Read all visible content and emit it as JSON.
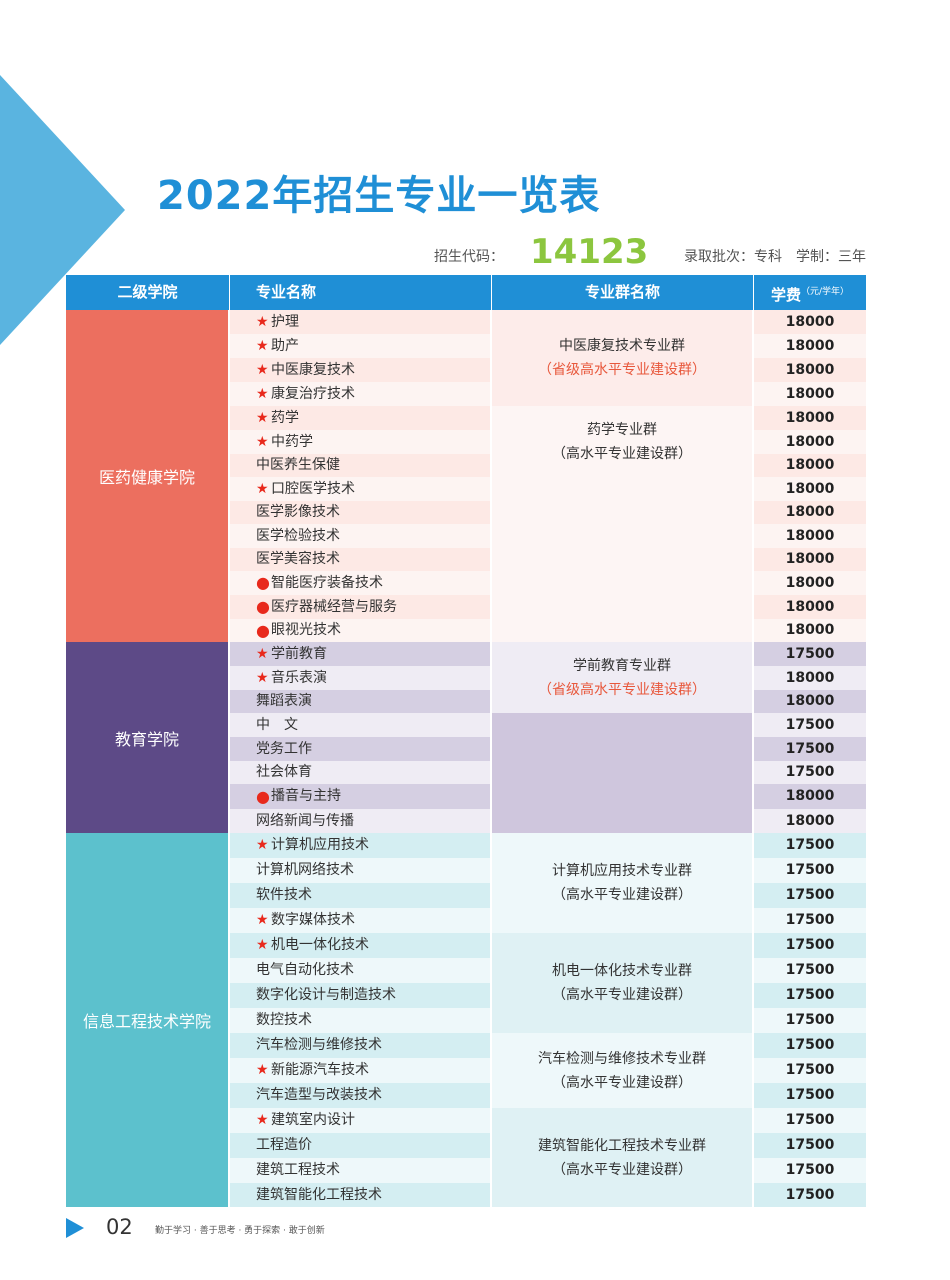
{
  "title": "2022年招生专业一览表",
  "code_label": "招生代码：",
  "code_value": "14123",
  "batch_info": "录取批次：专科　学制：三年",
  "headers": {
    "college": "二级学院",
    "major": "专业名称",
    "group": "专业群名称",
    "fee": "学费",
    "fee_unit": "（元/学年）"
  },
  "colleges": [
    {
      "name": "医药健康学院",
      "color": "#ec6f5f"
    },
    {
      "name": "教育学院",
      "color": "#5d4a87"
    },
    {
      "name": "信息工程技术学院",
      "color": "#5cc1cd"
    }
  ],
  "groups": [
    {
      "name": "中医康复技术专业群",
      "note": "（省级高水平专业建设群）"
    },
    {
      "name": "药学专业群",
      "note": "（高水平专业建设群）"
    },
    {
      "name": "学前教育专业群",
      "note": "（省级高水平专业建设群）"
    },
    {
      "name": "计算机应用技术专业群",
      "note": "（高水平专业建设群）"
    },
    {
      "name": "机电一体化技术专业群",
      "note": "（高水平专业建设群）"
    },
    {
      "name": "汽车检测与维修技术专业群",
      "note": "（高水平专业建设群）"
    },
    {
      "name": "建筑智能化工程技术专业群",
      "note": "（高水平专业建设群）"
    }
  ],
  "rows": [
    {
      "mark": "★",
      "name": "护理",
      "fee": "18000"
    },
    {
      "mark": "★",
      "name": "助产",
      "fee": "18000"
    },
    {
      "mark": "★",
      "name": "中医康复技术",
      "fee": "18000"
    },
    {
      "mark": "★",
      "name": "康复治疗技术",
      "fee": "18000"
    },
    {
      "mark": "★",
      "name": "药学",
      "fee": "18000"
    },
    {
      "mark": "★",
      "name": "中药学",
      "fee": "18000"
    },
    {
      "mark": "",
      "name": "中医养生保健",
      "fee": "18000"
    },
    {
      "mark": "★",
      "name": "口腔医学技术",
      "fee": "18000"
    },
    {
      "mark": "",
      "name": "医学影像技术",
      "fee": "18000"
    },
    {
      "mark": "",
      "name": "医学检验技术",
      "fee": "18000"
    },
    {
      "mark": "",
      "name": "医学美容技术",
      "fee": "18000"
    },
    {
      "mark": "●",
      "name": "智能医疗装备技术",
      "fee": "18000"
    },
    {
      "mark": "●",
      "name": "医疗器械经营与服务",
      "fee": "18000"
    },
    {
      "mark": "●",
      "name": "眼视光技术",
      "fee": "18000"
    },
    {
      "mark": "★",
      "name": "学前教育",
      "fee": "17500"
    },
    {
      "mark": "★",
      "name": "音乐表演",
      "fee": "18000"
    },
    {
      "mark": "",
      "name": "舞蹈表演",
      "fee": "18000"
    },
    {
      "mark": "",
      "name": "中　文",
      "fee": "17500"
    },
    {
      "mark": "",
      "name": "党务工作",
      "fee": "17500"
    },
    {
      "mark": "",
      "name": "社会体育",
      "fee": "17500"
    },
    {
      "mark": "●",
      "name": "播音与主持",
      "fee": "18000"
    },
    {
      "mark": "",
      "name": "网络新闻与传播",
      "fee": "18000"
    },
    {
      "mark": "★",
      "name": "计算机应用技术",
      "fee": "17500"
    },
    {
      "mark": "",
      "name": "计算机网络技术",
      "fee": "17500"
    },
    {
      "mark": "",
      "name": "软件技术",
      "fee": "17500"
    },
    {
      "mark": "★",
      "name": "数字媒体技术",
      "fee": "17500"
    },
    {
      "mark": "★",
      "name": "机电一体化技术",
      "fee": "17500"
    },
    {
      "mark": "",
      "name": "电气自动化技术",
      "fee": "17500"
    },
    {
      "mark": "",
      "name": "数字化设计与制造技术",
      "fee": "17500"
    },
    {
      "mark": "",
      "name": "数控技术",
      "fee": "17500"
    },
    {
      "mark": "",
      "name": "汽车检测与维修技术",
      "fee": "17500"
    },
    {
      "mark": "★",
      "name": "新能源汽车技术",
      "fee": "17500"
    },
    {
      "mark": "",
      "name": "汽车造型与改装技术",
      "fee": "17500"
    },
    {
      "mark": "★",
      "name": "建筑室内设计",
      "fee": "17500"
    },
    {
      "mark": "",
      "name": "工程造价",
      "fee": "17500"
    },
    {
      "mark": "",
      "name": "建筑工程技术",
      "fee": "17500"
    },
    {
      "mark": "",
      "name": "建筑智能化工程技术",
      "fee": "17500"
    }
  ],
  "footer": {
    "page": "02",
    "slogan": "勤于学习 · 善于思考 · 勇于探索 · 敢于创新"
  }
}
